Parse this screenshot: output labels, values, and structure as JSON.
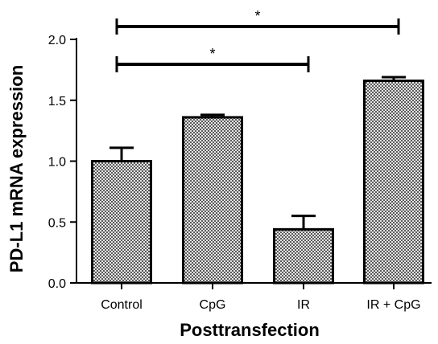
{
  "chart_data": {
    "type": "bar",
    "categories": [
      "Control",
      "CpG",
      "IR",
      "IR + CpG"
    ],
    "values": [
      1.0,
      1.36,
      0.44,
      1.66
    ],
    "errors": [
      0.11,
      0.02,
      0.11,
      0.03
    ],
    "xlabel": "Posttransfection",
    "ylabel": "PD-L1 mRNA expression",
    "ylim": [
      0,
      2.0
    ],
    "yticks": [
      "0.0",
      "0.5",
      "1.0",
      "1.5",
      "2.0"
    ],
    "ytick_values": [
      0,
      0.5,
      1.0,
      1.5,
      2.0
    ],
    "grid": false,
    "bar_fill": "checkered gray",
    "significance": [
      {
        "from": "Control",
        "to": "IR + CpG",
        "label": "*"
      },
      {
        "from": "Control",
        "to": "IR",
        "label": "*"
      }
    ]
  }
}
